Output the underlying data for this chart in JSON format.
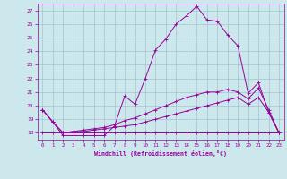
{
  "xlabel": "Windchill (Refroidissement éolien,°C)",
  "bg_color": "#cce8ec",
  "line_color": "#990099",
  "grid_color": "#99bbcc",
  "xlim": [
    -0.5,
    23.5
  ],
  "ylim": [
    17.5,
    27.5
  ],
  "yticks": [
    18,
    19,
    20,
    21,
    22,
    23,
    24,
    25,
    26,
    27
  ],
  "xticks": [
    0,
    1,
    2,
    3,
    4,
    5,
    6,
    7,
    8,
    9,
    10,
    11,
    12,
    13,
    14,
    15,
    16,
    17,
    18,
    19,
    20,
    21,
    22,
    23
  ],
  "series": [
    [
      19.7,
      18.8,
      17.8,
      17.8,
      17.8,
      17.8,
      17.8,
      18.5,
      20.7,
      20.1,
      22.0,
      24.1,
      24.9,
      26.0,
      26.6,
      27.3,
      26.3,
      26.2,
      25.2,
      24.4,
      20.9,
      21.7,
      19.5,
      18.0
    ],
    [
      19.7,
      18.8,
      18.0,
      18.1,
      18.2,
      18.3,
      18.4,
      18.6,
      18.9,
      19.1,
      19.4,
      19.7,
      20.0,
      20.3,
      20.6,
      20.8,
      21.0,
      21.0,
      21.2,
      21.0,
      20.5,
      21.3,
      19.7,
      18.0
    ],
    [
      19.7,
      18.8,
      18.0,
      18.1,
      18.1,
      18.2,
      18.3,
      18.4,
      18.5,
      18.6,
      18.8,
      19.0,
      19.2,
      19.4,
      19.6,
      19.8,
      20.0,
      20.2,
      20.4,
      20.6,
      20.1,
      20.6,
      19.5,
      18.0
    ],
    [
      18.0,
      18.0,
      18.0,
      18.0,
      18.0,
      18.0,
      18.0,
      18.0,
      18.0,
      18.0,
      18.0,
      18.0,
      18.0,
      18.0,
      18.0,
      18.0,
      18.0,
      18.0,
      18.0,
      18.0,
      18.0,
      18.0,
      18.0,
      18.0
    ]
  ]
}
